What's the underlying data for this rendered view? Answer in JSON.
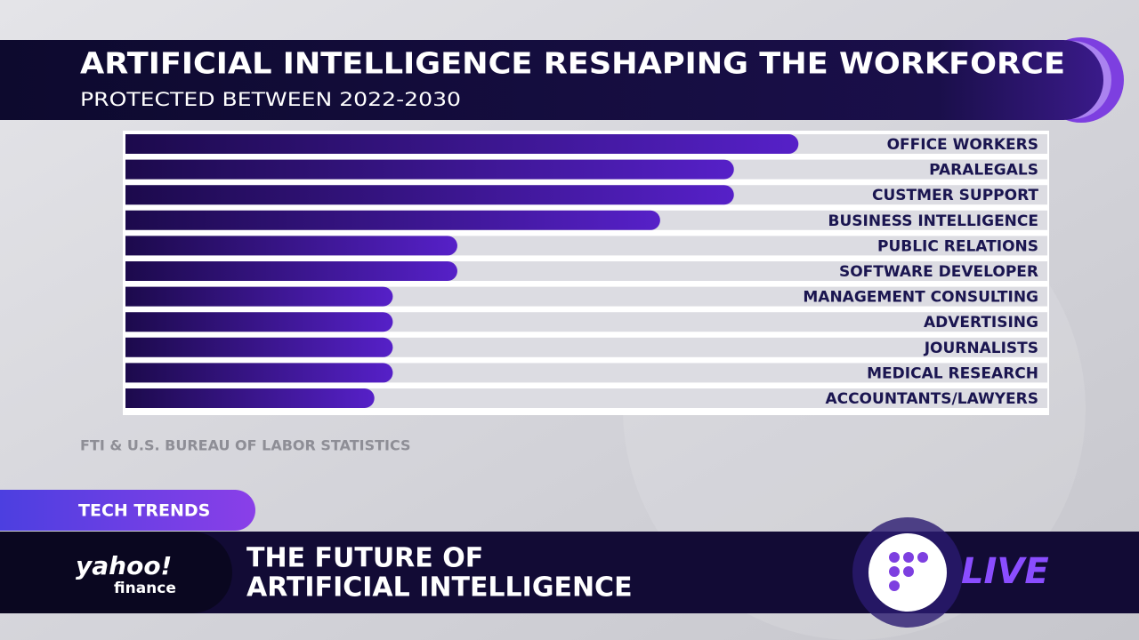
{
  "chart_data": {
    "type": "bar",
    "orientation": "horizontal",
    "title": "ARTIFICIAL INTELLIGENCE RESHAPING THE WORKFORCE",
    "subtitle": "PROTECTED BETWEEN 2022-2030",
    "source": "FTI & U.S. BUREAU OF LABOR STATISTICS",
    "categories": [
      "OFFICE WORKERS",
      "PARALEGALS",
      "CUSTMER SUPPORT",
      "BUSINESS INTELLIGENCE",
      "PUBLIC RELATIONS",
      "SOFTWARE DEVELOPER",
      "MANAGEMENT CONSULTING",
      "ADVERTISING",
      "JOURNALISTS",
      "MEDICAL RESEARCH",
      "ACCOUNTANTS/LAWYERS"
    ],
    "values": [
      73,
      66,
      66,
      58,
      36,
      36,
      29,
      29,
      29,
      29,
      27
    ],
    "xlim": [
      0,
      100
    ],
    "color": "#5620c8"
  },
  "ticker": {
    "tag": "TECH TRENDS",
    "headline": [
      "THE FUTURE OF",
      "ARTIFICIAL INTELLIGENCE"
    ],
    "logo": [
      "yahoo!",
      "finance"
    ],
    "live": "LIVE"
  }
}
